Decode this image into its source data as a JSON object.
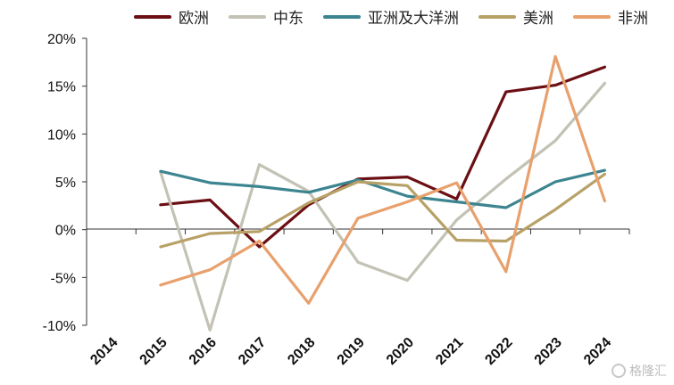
{
  "chart_data": {
    "type": "line",
    "title": "",
    "xlabel": "",
    "ylabel": "",
    "categories": [
      "2014",
      "2015",
      "2016",
      "2017",
      "2018",
      "2019",
      "2020",
      "2021",
      "2022",
      "2023",
      "2024"
    ],
    "y_ticks": [
      "-10%",
      "-5%",
      "0%",
      "5%",
      "10%",
      "15%",
      "20%"
    ],
    "ylim": [
      -10,
      20
    ],
    "legend_position": "top",
    "grid": false,
    "series": [
      {
        "name": "欧洲",
        "color": "#6b0f14",
        "values": [
          null,
          2.6,
          3.1,
          -1.8,
          2.6,
          5.3,
          5.5,
          3.2,
          14.4,
          15.1,
          17.0
        ]
      },
      {
        "name": "中东",
        "color": "#c3c2b5",
        "values": [
          null,
          6.0,
          -10.5,
          6.8,
          4.0,
          -3.4,
          -5.3,
          1.0,
          5.3,
          9.3,
          15.3
        ]
      },
      {
        "name": "亚洲及大洋洲",
        "color": "#3c8590",
        "values": [
          null,
          6.1,
          4.9,
          4.5,
          3.9,
          5.2,
          3.5,
          2.9,
          2.3,
          5.0,
          6.2
        ]
      },
      {
        "name": "美洲",
        "color": "#b8a166",
        "values": [
          null,
          -1.8,
          -0.4,
          -0.2,
          2.8,
          5.0,
          4.6,
          -1.1,
          -1.2,
          2.1,
          5.8
        ]
      },
      {
        "name": "非洲",
        "color": "#e8a06c",
        "values": [
          null,
          -5.8,
          -4.2,
          -1.2,
          -7.7,
          1.2,
          2.9,
          4.9,
          -4.4,
          18.1,
          3.0
        ]
      }
    ]
  },
  "watermark": {
    "icon": "gelonghui-logo-icon",
    "text": "格隆汇"
  }
}
